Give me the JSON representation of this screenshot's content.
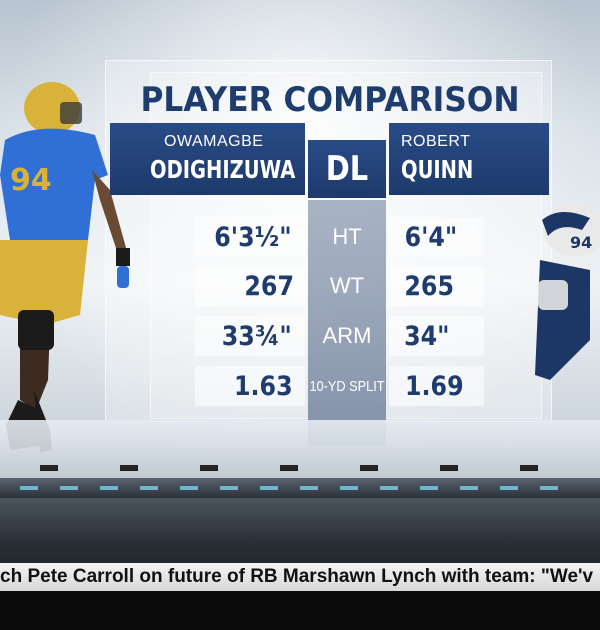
{
  "graphic": {
    "title": "PLAYER COMPARISON",
    "position": "DL",
    "left_player": {
      "first_name": "OWAMAGBE",
      "last_name": "ODIGHIZUWA",
      "jersey": "94"
    },
    "right_player": {
      "first_name": "ROBERT",
      "last_name": "QUINN",
      "jersey": "94"
    },
    "rows": [
      {
        "label": "HT",
        "left": "6'3½\"",
        "right": "6'4\""
      },
      {
        "label": "WT",
        "left": "267",
        "right": "265"
      },
      {
        "label": "ARM",
        "left": "33¾\"",
        "right": "34\""
      },
      {
        "label": "10-YD SPLIT",
        "left": "1.63",
        "right": "1.69"
      }
    ]
  },
  "ticker": {
    "text": "ch Pete Carroll on future of RB Marshawn Lynch with team: \"We'v"
  },
  "colors": {
    "navy": "#1f3c6e",
    "header_blue": "#294b86",
    "ucla_blue": "#2f6fd6",
    "ucla_gold": "#d9b23a"
  }
}
